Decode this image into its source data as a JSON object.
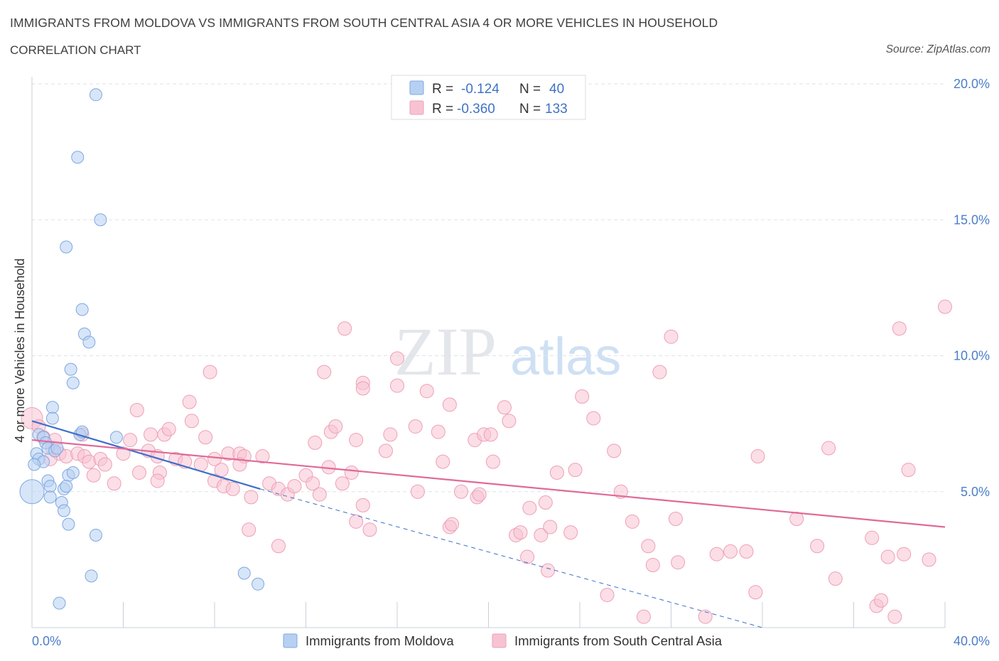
{
  "title": "IMMIGRANTS FROM MOLDOVA VS IMMIGRANTS FROM SOUTH CENTRAL ASIA 4 OR MORE VEHICLES IN HOUSEHOLD",
  "subtitle": "CORRELATION CHART",
  "source": "Source: ZipAtlas.com",
  "watermark": {
    "zip": "ZIP",
    "atlas": "atlas"
  },
  "colors": {
    "blue_fill": "#b7d0f2",
    "blue_stroke": "#7ea8e0",
    "blue_line": "#3c6fcb",
    "pink_fill": "#f7c3d2",
    "pink_stroke": "#ee9fb7",
    "pink_line": "#e06a97",
    "grid": "#dde3ea",
    "axis_text": "#4a7ec9"
  },
  "chart_data": {
    "type": "scatter",
    "title": "IMMIGRANTS FROM MOLDOVA VS IMMIGRANTS FROM SOUTH CENTRAL ASIA 4 OR MORE VEHICLES IN HOUSEHOLD",
    "xlabel": "",
    "ylabel": "4 or more Vehicles in Household",
    "xlim": [
      0,
      40
    ],
    "ylim": [
      0,
      20
    ],
    "y_ticks": [
      {
        "value": 5,
        "label": "5.0%"
      },
      {
        "value": 10,
        "label": "10.0%"
      },
      {
        "value": 15,
        "label": "15.0%"
      },
      {
        "value": 20,
        "label": "20.0%"
      }
    ],
    "x_tick_labels": {
      "min": "0.0%",
      "max": "40.0%"
    },
    "legend": [
      {
        "name": "Immigrants from Moldova",
        "r_label": "R = ",
        "r": "-0.124",
        "n_label": "N = ",
        "n": "40"
      },
      {
        "name": "Immigrants from South Central Asia",
        "r_label": "R = ",
        "r": "-0.360",
        "n_label": "N = ",
        "n": "133"
      }
    ],
    "series": [
      {
        "name": "Immigrants from Moldova",
        "color": "#7ea8e0",
        "trend": {
          "x0": 0,
          "y0": 7.6,
          "x1": 10,
          "y1": 5.1,
          "dashed_to_x": 32,
          "dashed_to_y": 0
        },
        "points": [
          [
            2.8,
            19.6
          ],
          [
            2.0,
            17.3
          ],
          [
            3.0,
            15.0
          ],
          [
            1.5,
            14.0
          ],
          [
            2.2,
            11.7
          ],
          [
            2.3,
            10.8
          ],
          [
            2.5,
            10.5
          ],
          [
            1.7,
            9.5
          ],
          [
            1.8,
            9.0
          ],
          [
            0.9,
            8.1
          ],
          [
            0.9,
            7.7
          ],
          [
            0.3,
            7.1
          ],
          [
            0.5,
            7.0
          ],
          [
            2.1,
            7.1
          ],
          [
            2.2,
            7.2
          ],
          [
            3.7,
            7.0
          ],
          [
            0.6,
            6.8
          ],
          [
            0.7,
            6.6
          ],
          [
            1.0,
            6.5
          ],
          [
            1.1,
            6.6
          ],
          [
            0.2,
            6.4
          ],
          [
            0.3,
            6.2
          ],
          [
            0.5,
            6.1
          ],
          [
            1.6,
            5.6
          ],
          [
            1.8,
            5.7
          ],
          [
            0.7,
            5.4
          ],
          [
            0.8,
            5.2
          ],
          [
            1.4,
            5.1
          ],
          [
            1.5,
            5.2
          ],
          [
            0.0,
            5.0
          ],
          [
            0.8,
            4.8
          ],
          [
            1.3,
            4.6
          ],
          [
            1.4,
            4.3
          ],
          [
            1.6,
            3.8
          ],
          [
            2.8,
            3.4
          ],
          [
            2.6,
            1.9
          ],
          [
            9.3,
            2.0
          ],
          [
            9.9,
            1.6
          ],
          [
            1.2,
            0.9
          ],
          [
            0.1,
            6.0
          ]
        ]
      },
      {
        "name": "Immigrants from South Central Asia",
        "color": "#ee9fb7",
        "trend": {
          "x0": 0,
          "y0": 6.9,
          "x1": 40,
          "y1": 3.7
        },
        "points": [
          [
            0.0,
            7.7
          ],
          [
            0.3,
            7.4
          ],
          [
            0.5,
            7.0
          ],
          [
            0.9,
            6.6
          ],
          [
            1.0,
            6.9
          ],
          [
            1.2,
            6.4
          ],
          [
            0.8,
            6.2
          ],
          [
            1.5,
            6.3
          ],
          [
            2.0,
            6.4
          ],
          [
            2.3,
            6.3
          ],
          [
            2.5,
            6.1
          ],
          [
            3.0,
            6.2
          ],
          [
            3.2,
            6.0
          ],
          [
            2.2,
            7.1
          ],
          [
            2.7,
            5.6
          ],
          [
            3.6,
            5.3
          ],
          [
            4.6,
            8.0
          ],
          [
            5.2,
            7.1
          ],
          [
            5.8,
            7.1
          ],
          [
            6.0,
            7.3
          ],
          [
            6.9,
            8.3
          ],
          [
            7.0,
            7.6
          ],
          [
            7.6,
            7.0
          ],
          [
            7.8,
            9.4
          ],
          [
            4.3,
            6.9
          ],
          [
            4.0,
            6.4
          ],
          [
            5.1,
            6.5
          ],
          [
            5.5,
            6.3
          ],
          [
            6.3,
            6.2
          ],
          [
            6.7,
            6.1
          ],
          [
            7.4,
            6.0
          ],
          [
            8.0,
            6.2
          ],
          [
            8.6,
            6.4
          ],
          [
            9.1,
            6.4
          ],
          [
            9.3,
            6.3
          ],
          [
            10.1,
            6.3
          ],
          [
            8.3,
            5.8
          ],
          [
            9.1,
            6.0
          ],
          [
            4.7,
            5.7
          ],
          [
            5.6,
            5.7
          ],
          [
            5.5,
            5.4
          ],
          [
            8.0,
            5.4
          ],
          [
            8.4,
            5.2
          ],
          [
            8.8,
            5.1
          ],
          [
            9.5,
            3.6
          ],
          [
            10.4,
            5.3
          ],
          [
            10.8,
            5.1
          ],
          [
            11.2,
            4.9
          ],
          [
            11.5,
            5.2
          ],
          [
            12.0,
            5.6
          ],
          [
            12.6,
            4.9
          ],
          [
            13.0,
            5.9
          ],
          [
            12.3,
            5.3
          ],
          [
            10.8,
            3.0
          ],
          [
            9.6,
            4.8
          ],
          [
            12.4,
            6.8
          ],
          [
            12.8,
            9.4
          ],
          [
            13.7,
            11.0
          ],
          [
            13.1,
            7.2
          ],
          [
            13.3,
            7.4
          ],
          [
            14.2,
            6.9
          ],
          [
            14.0,
            5.7
          ],
          [
            13.6,
            5.3
          ],
          [
            14.5,
            4.5
          ],
          [
            14.2,
            3.9
          ],
          [
            14.8,
            3.6
          ],
          [
            14.5,
            9.0
          ],
          [
            14.5,
            8.8
          ],
          [
            15.5,
            6.5
          ],
          [
            15.7,
            7.1
          ],
          [
            16.0,
            8.9
          ],
          [
            16.0,
            9.9
          ],
          [
            16.8,
            7.4
          ],
          [
            16.9,
            5.0
          ],
          [
            17.3,
            8.7
          ],
          [
            17.8,
            7.2
          ],
          [
            18.0,
            6.1
          ],
          [
            18.3,
            8.2
          ],
          [
            18.3,
            3.7
          ],
          [
            18.4,
            3.8
          ],
          [
            18.8,
            5.0
          ],
          [
            19.5,
            4.8
          ],
          [
            19.6,
            4.9
          ],
          [
            19.4,
            6.9
          ],
          [
            19.8,
            7.1
          ],
          [
            20.1,
            7.1
          ],
          [
            20.2,
            6.1
          ],
          [
            20.7,
            8.1
          ],
          [
            20.9,
            7.6
          ],
          [
            21.2,
            3.4
          ],
          [
            21.4,
            3.5
          ],
          [
            21.7,
            2.6
          ],
          [
            21.8,
            4.4
          ],
          [
            22.3,
            3.4
          ],
          [
            22.5,
            4.6
          ],
          [
            22.6,
            2.1
          ],
          [
            22.7,
            3.7
          ],
          [
            23.0,
            5.7
          ],
          [
            23.6,
            3.5
          ],
          [
            23.8,
            5.8
          ],
          [
            24.1,
            8.5
          ],
          [
            24.6,
            7.7
          ],
          [
            25.2,
            1.2
          ],
          [
            25.5,
            6.5
          ],
          [
            25.8,
            5.0
          ],
          [
            26.3,
            3.9
          ],
          [
            26.8,
            0.4
          ],
          [
            27.0,
            3.0
          ],
          [
            27.2,
            2.3
          ],
          [
            27.5,
            9.4
          ],
          [
            28.0,
            10.7
          ],
          [
            28.2,
            4.0
          ],
          [
            28.3,
            2.4
          ],
          [
            29.5,
            0.4
          ],
          [
            30.0,
            2.7
          ],
          [
            30.6,
            2.8
          ],
          [
            31.3,
            2.8
          ],
          [
            31.7,
            1.3
          ],
          [
            31.8,
            6.3
          ],
          [
            33.5,
            4.0
          ],
          [
            34.4,
            3.0
          ],
          [
            34.9,
            6.6
          ],
          [
            35.2,
            1.8
          ],
          [
            36.8,
            3.3
          ],
          [
            37.0,
            0.8
          ],
          [
            37.2,
            1.0
          ],
          [
            37.5,
            2.6
          ],
          [
            37.8,
            0.4
          ],
          [
            38.0,
            11.0
          ],
          [
            38.2,
            2.7
          ],
          [
            38.4,
            5.8
          ],
          [
            39.3,
            2.5
          ],
          [
            40.0,
            11.8
          ]
        ]
      }
    ]
  }
}
